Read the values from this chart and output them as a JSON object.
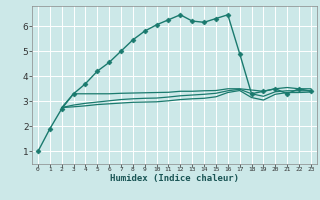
{
  "xlabel": "Humidex (Indice chaleur)",
  "bg_color": "#cce8e8",
  "grid_color": "#ffffff",
  "line_color": "#1a7a6e",
  "xlim": [
    -0.5,
    23.5
  ],
  "ylim": [
    0.5,
    6.8
  ],
  "xticks": [
    0,
    1,
    2,
    3,
    4,
    5,
    6,
    7,
    8,
    9,
    10,
    11,
    12,
    13,
    14,
    15,
    16,
    17,
    18,
    19,
    20,
    21,
    22,
    23
  ],
  "yticks": [
    1,
    2,
    3,
    4,
    5,
    6
  ],
  "series": [
    {
      "x": [
        0,
        1,
        2,
        3,
        4,
        5,
        6,
        7,
        8,
        9,
        10,
        11,
        12,
        13,
        14,
        15,
        16,
        17,
        18,
        19,
        20,
        21,
        22,
        23
      ],
      "y": [
        1.0,
        1.9,
        2.7,
        3.3,
        3.7,
        4.2,
        4.55,
        5.0,
        5.45,
        5.8,
        6.05,
        6.25,
        6.45,
        6.2,
        6.15,
        6.3,
        6.45,
        4.9,
        3.3,
        3.4,
        3.5,
        3.3,
        3.5,
        3.4
      ],
      "marker": "D",
      "lw": 1.0,
      "ms": 2.5
    },
    {
      "x": [
        2,
        3,
        4,
        5,
        6,
        7,
        8,
        9,
        10,
        11,
        12,
        13,
        14,
        15,
        16,
        17,
        18,
        19,
        20,
        21,
        22,
        23
      ],
      "y": [
        2.75,
        3.3,
        3.3,
        3.3,
        3.3,
        3.32,
        3.33,
        3.34,
        3.35,
        3.36,
        3.4,
        3.4,
        3.42,
        3.43,
        3.5,
        3.5,
        3.45,
        3.4,
        3.5,
        3.55,
        3.5,
        3.5
      ],
      "marker": null,
      "lw": 0.9,
      "ms": 0
    },
    {
      "x": [
        2,
        3,
        4,
        5,
        6,
        7,
        8,
        9,
        10,
        11,
        12,
        13,
        14,
        15,
        16,
        17,
        18,
        19,
        20,
        21,
        22,
        23
      ],
      "y": [
        2.75,
        2.85,
        2.92,
        2.97,
        3.02,
        3.07,
        3.1,
        3.12,
        3.13,
        3.17,
        3.22,
        3.25,
        3.28,
        3.32,
        3.42,
        3.48,
        3.3,
        3.2,
        3.38,
        3.42,
        3.42,
        3.42
      ],
      "marker": null,
      "lw": 0.9,
      "ms": 0
    },
    {
      "x": [
        2,
        3,
        4,
        5,
        6,
        7,
        8,
        9,
        10,
        11,
        12,
        13,
        14,
        15,
        16,
        17,
        18,
        19,
        20,
        21,
        22,
        23
      ],
      "y": [
        2.75,
        2.78,
        2.82,
        2.87,
        2.9,
        2.93,
        2.96,
        2.97,
        2.98,
        3.02,
        3.07,
        3.1,
        3.12,
        3.18,
        3.35,
        3.43,
        3.15,
        3.05,
        3.28,
        3.35,
        3.35,
        3.37
      ],
      "marker": null,
      "lw": 0.9,
      "ms": 0
    }
  ]
}
